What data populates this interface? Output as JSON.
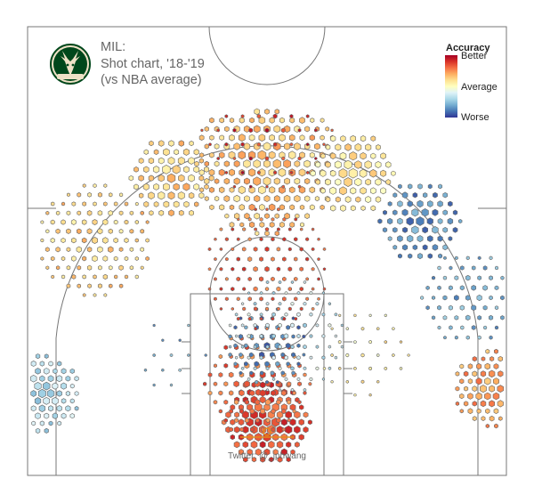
{
  "header": {
    "team": "MIL:",
    "subtitle": "Shot chart, '18-'19",
    "comparison": "(vs NBA average)"
  },
  "legend": {
    "title": "Accuracy",
    "top_label": "Better",
    "mid_label": "Average",
    "bottom_label": "Worse",
    "colors": [
      "#a50026",
      "#d73027",
      "#f46d43",
      "#fdae61",
      "#fee090",
      "#ffffbf",
      "#e0f3f8",
      "#abd9e9",
      "#74add1",
      "#4575b4",
      "#313695"
    ]
  },
  "credit": "Twitter: @_jphwang",
  "logo": {
    "name": "bucks-logo",
    "text": "MILWAUKEE BUCKS",
    "primary": "#00471b",
    "secondary": "#eee1c6"
  },
  "chart_data": {
    "type": "hexbin",
    "title": "Shot chart, '18-'19",
    "xlabel": "",
    "ylabel": "",
    "units": "feet from basket",
    "xlim": [
      -25,
      25
    ],
    "ylim": [
      -4,
      42
    ],
    "color_scale": "accuracy vs NBA average (-1 worse, +1 better)",
    "size_scale": "relative shot frequency (0-1)",
    "regions": [
      {
        "name": "Restricted area",
        "center": [
          0,
          1
        ],
        "radius": 4.5,
        "accuracy": 0.7,
        "size": 0.95,
        "spacing": 0.9
      },
      {
        "name": "Lower paint",
        "center": [
          -1,
          5
        ],
        "radius": 5.5,
        "accuracy": 0.6,
        "size": 0.6,
        "spacing": 1.1
      },
      {
        "name": "Paint non-RA",
        "center": [
          0,
          9
        ],
        "radius": 4,
        "accuracy": -0.75,
        "size": 0.55,
        "spacing": 1.1
      },
      {
        "name": "Paint wings",
        "center": [
          2,
          10
        ],
        "radius": 6,
        "accuracy": -0.3,
        "size": 0.35,
        "spacing": 1.3
      },
      {
        "name": "Elbows / free throw",
        "center": [
          0,
          17
        ],
        "radius": 6.5,
        "accuracy": 0.65,
        "size": 0.4,
        "spacing": 1.2
      },
      {
        "name": "Left corner 3",
        "center": [
          -23.5,
          4
        ],
        "radius": 4,
        "accuracy": -0.35,
        "size": 0.75,
        "spacing": 0.9
      },
      {
        "name": "Right corner 3",
        "center": [
          23.5,
          4.5
        ],
        "radius": 4,
        "accuracy": 0.45,
        "size": 0.7,
        "spacing": 0.9
      },
      {
        "name": "Left wing 3",
        "center": [
          -18,
          20
        ],
        "radius": 6,
        "accuracy": 0.25,
        "size": 0.55,
        "spacing": 1.1
      },
      {
        "name": "Left-center 3",
        "center": [
          -10,
          26.5
        ],
        "radius": 4.5,
        "accuracy": 0.25,
        "size": 0.85,
        "spacing": 1.05
      },
      {
        "name": "Top of key 3",
        "center": [
          0,
          28
        ],
        "radius": 7.5,
        "accuracy": 0.3,
        "size": 0.85,
        "spacing": 1.05
      },
      {
        "name": "Right-center 3",
        "center": [
          9,
          27
        ],
        "radius": 4.5,
        "accuracy": 0.15,
        "size": 0.9,
        "spacing": 1.05
      },
      {
        "name": "Right wing 3",
        "center": [
          16,
          22
        ],
        "radius": 4.5,
        "accuracy": -0.7,
        "size": 0.75,
        "spacing": 1.05
      },
      {
        "name": "Right wing 3 (lower)",
        "center": [
          21,
          14
        ],
        "radius": 5,
        "accuracy": -0.6,
        "size": 0.5,
        "spacing": 1.2
      },
      {
        "name": "Deep 3",
        "center": [
          0,
          31.5
        ],
        "radius": 7,
        "accuracy": 0.8,
        "size": 0.35,
        "spacing": 1.7
      },
      {
        "name": "Left midrange",
        "center": [
          -10,
          8
        ],
        "radius": 5.5,
        "accuracy": -0.6,
        "size": 0.2,
        "spacing": 1.8
      },
      {
        "name": "Right midrange",
        "center": [
          10,
          8
        ],
        "radius": 5.5,
        "accuracy": 0.1,
        "size": 0.25,
        "spacing": 1.6
      }
    ]
  }
}
